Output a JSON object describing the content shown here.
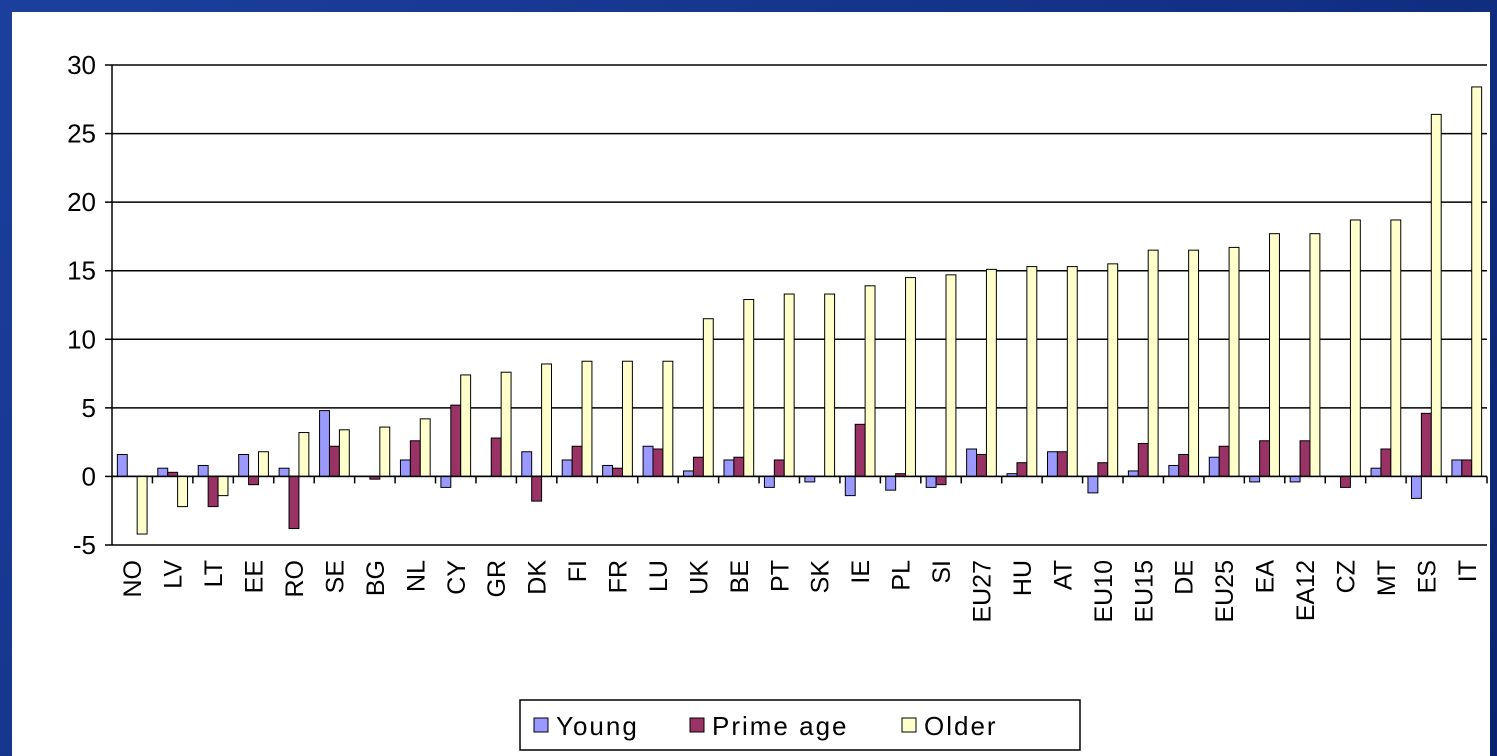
{
  "chart_data": {
    "type": "bar",
    "categories": [
      "NO",
      "LV",
      "LT",
      "EE",
      "RO",
      "SE",
      "BG",
      "NL",
      "CY",
      "GR",
      "DK",
      "FI",
      "FR",
      "LU",
      "UK",
      "BE",
      "PT",
      "SK",
      "IE",
      "PL",
      "SI",
      "EU27",
      "HU",
      "AT",
      "EU10",
      "EU15",
      "DE",
      "EU25",
      "EA",
      "EA12",
      "CZ",
      "MT",
      "ES",
      "IT"
    ],
    "series": [
      {
        "name": "Young",
        "color": "#9999ff",
        "values": [
          1.6,
          0.6,
          0.8,
          1.6,
          0.6,
          4.8,
          0,
          1.2,
          -0.8,
          0,
          1.8,
          1.2,
          0.8,
          2.2,
          0.4,
          1.2,
          -0.8,
          -0.4,
          -1.4,
          -1.0,
          -0.8,
          2.0,
          0.2,
          1.8,
          -1.2,
          0.4,
          0.8,
          1.4,
          -0.4,
          -0.4,
          0,
          0.6,
          -1.6,
          1.2
        ]
      },
      {
        "name": "Prime age",
        "color": "#993366",
        "values": [
          0,
          0.3,
          -2.2,
          -0.6,
          -3.8,
          2.2,
          -0.2,
          2.6,
          5.2,
          2.8,
          -1.8,
          2.2,
          0.6,
          2.0,
          1.4,
          1.4,
          1.2,
          0,
          3.8,
          0.2,
          -0.6,
          1.6,
          1.0,
          1.8,
          1.0,
          2.4,
          1.6,
          2.2,
          2.6,
          2.6,
          -0.8,
          2.0,
          4.6,
          1.2
        ]
      },
      {
        "name": "Older",
        "color": "#ffffcc",
        "values": [
          -4.2,
          -2.2,
          -1.4,
          1.8,
          3.2,
          3.4,
          3.6,
          4.2,
          7.4,
          7.6,
          8.2,
          8.4,
          8.4,
          8.4,
          11.5,
          12.9,
          13.3,
          13.3,
          13.9,
          14.5,
          14.7,
          15.1,
          15.3,
          15.3,
          15.5,
          16.5,
          16.5,
          16.7,
          17.7,
          17.7,
          18.7,
          18.7,
          26.4,
          28.4
        ]
      }
    ],
    "ylim": [
      -5,
      30
    ],
    "yticks": [
      -5,
      0,
      5,
      10,
      15,
      20,
      25,
      30
    ],
    "grid": true,
    "legend": "bottom"
  }
}
